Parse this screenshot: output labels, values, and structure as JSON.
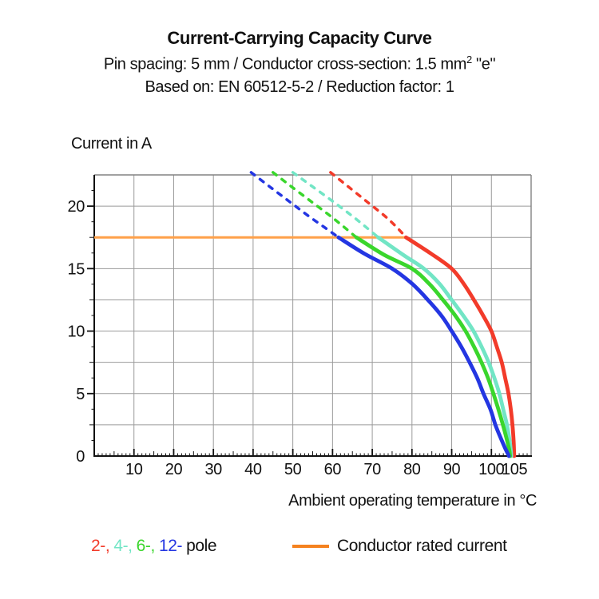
{
  "header": {
    "title": "Current-Carrying Capacity Curve",
    "subtitle1_pre": "Pin spacing: 5 mm / Conductor cross-section: 1.5 mm",
    "subtitle1_sup": "2",
    "subtitle1_post": " \"e\"",
    "subtitle2": "Based on: EN 60512-5-2 / Reduction factor: 1"
  },
  "chart_data": {
    "type": "line",
    "title": "Current-Carrying Capacity Curve",
    "xlabel": "Ambient operating temperature in °C",
    "ylabel": "Current in A",
    "xlim": [
      0,
      110
    ],
    "ylim": [
      0,
      22.5
    ],
    "grid": true,
    "grid_x_step": 10,
    "grid_y_step": 2.5,
    "x_tick_labels": [
      {
        "t": 10,
        "label": "10"
      },
      {
        "t": 20,
        "label": "20"
      },
      {
        "t": 30,
        "label": "30"
      },
      {
        "t": 40,
        "label": "40"
      },
      {
        "t": 50,
        "label": "50"
      },
      {
        "t": 60,
        "label": "60"
      },
      {
        "t": 70,
        "label": "70"
      },
      {
        "t": 80,
        "label": "80"
      },
      {
        "t": 90,
        "label": "90"
      },
      {
        "t": 100,
        "label": "100"
      },
      {
        "t": 105,
        "label": "105",
        "dx": 4
      }
    ],
    "y_tick_labels": [
      {
        "i": 0,
        "label": "0"
      },
      {
        "i": 5,
        "label": "5"
      },
      {
        "i": 10,
        "label": "10"
      },
      {
        "i": 15,
        "label": "15"
      },
      {
        "i": 20,
        "label": "20"
      }
    ],
    "rated_current": {
      "label": "Conductor rated current",
      "value_amps": 17.5,
      "t_start": 0,
      "t_end": 78.5,
      "line_color": "#ffa14a"
    },
    "series": [
      {
        "name": "2-pole",
        "color": "#f23b2a",
        "style_above_rated": "dashed",
        "dashed_points": [
          [
            59.5,
            22.7
          ],
          [
            63.8,
            21.6
          ],
          [
            68.5,
            20.4
          ],
          [
            73.2,
            19.2
          ],
          [
            76.2,
            18.3
          ],
          [
            78.5,
            17.5
          ]
        ],
        "solid_points": [
          [
            78.5,
            17.5
          ],
          [
            84.8,
            16.2
          ],
          [
            90,
            15
          ],
          [
            93,
            13.8
          ],
          [
            95.6,
            12.5
          ],
          [
            98,
            11.2
          ],
          [
            100,
            10
          ],
          [
            101.4,
            8.7
          ],
          [
            102.6,
            7.5
          ],
          [
            103.5,
            6.2
          ],
          [
            104.3,
            5
          ],
          [
            104.9,
            3.7
          ],
          [
            105.3,
            2.5
          ],
          [
            105.6,
            1.2
          ],
          [
            105.7,
            0.4
          ],
          [
            105.75,
            0
          ]
        ]
      },
      {
        "name": "4-pole",
        "color": "#72e5c5",
        "style_above_rated": "dashed",
        "dashed_points": [
          [
            50,
            22.7
          ],
          [
            54.8,
            21.6
          ],
          [
            60,
            20.4
          ],
          [
            65,
            19.2
          ],
          [
            68.5,
            18.3
          ],
          [
            71.5,
            17.5
          ]
        ],
        "solid_points": [
          [
            71.5,
            17.5
          ],
          [
            77.8,
            16.1
          ],
          [
            83,
            15
          ],
          [
            86.9,
            13.8
          ],
          [
            90,
            12.5
          ],
          [
            93,
            11.2
          ],
          [
            95.5,
            10
          ],
          [
            97.6,
            8.7
          ],
          [
            99.3,
            7.5
          ],
          [
            100.8,
            6.2
          ],
          [
            102,
            5
          ],
          [
            103,
            3.7
          ],
          [
            103.9,
            2.5
          ],
          [
            104.6,
            1.2
          ],
          [
            104.9,
            0.4
          ],
          [
            105,
            0
          ]
        ]
      },
      {
        "name": "6-pole",
        "color": "#3ad62c",
        "style_above_rated": "dashed",
        "dashed_points": [
          [
            45,
            22.7
          ],
          [
            49.5,
            21.6
          ],
          [
            54.5,
            20.4
          ],
          [
            59.5,
            19.2
          ],
          [
            63,
            18.3
          ],
          [
            66,
            17.5
          ]
        ],
        "solid_points": [
          [
            66,
            17.5
          ],
          [
            73,
            16.1
          ],
          [
            80,
            15
          ],
          [
            84.3,
            13.8
          ],
          [
            87.8,
            12.5
          ],
          [
            91,
            11.2
          ],
          [
            93.5,
            10
          ],
          [
            95.7,
            8.7
          ],
          [
            97.5,
            7.5
          ],
          [
            99.2,
            6.2
          ],
          [
            100.5,
            5
          ],
          [
            101.8,
            3.7
          ],
          [
            102.9,
            2.5
          ],
          [
            103.9,
            1.3
          ],
          [
            104.5,
            0.5
          ],
          [
            104.7,
            0
          ]
        ]
      },
      {
        "name": "12-pole",
        "color": "#2436e2",
        "style_above_rated": "dashed",
        "dashed_points": [
          [
            39.5,
            22.7
          ],
          [
            44,
            21.6
          ],
          [
            49,
            20.4
          ],
          [
            54,
            19.2
          ],
          [
            58,
            18.3
          ],
          [
            61.5,
            17.5
          ]
        ],
        "solid_points": [
          [
            61.5,
            17.5
          ],
          [
            68,
            16.2
          ],
          [
            75,
            15
          ],
          [
            80,
            13.8
          ],
          [
            84,
            12.5
          ],
          [
            87.5,
            11.2
          ],
          [
            90,
            10
          ],
          [
            92.5,
            8.7
          ],
          [
            94.5,
            7.5
          ],
          [
            96.5,
            6.2
          ],
          [
            98,
            5
          ],
          [
            99.8,
            3.7
          ],
          [
            101,
            2.5
          ],
          [
            102.4,
            1.4
          ],
          [
            103.5,
            0.6
          ],
          [
            104.2,
            0.15
          ],
          [
            104.4,
            0
          ]
        ]
      }
    ]
  },
  "legend": {
    "pole_items": [
      {
        "label": "2-,",
        "color": "#f23b2a"
      },
      {
        "label": "4-,",
        "color": "#72e5c5"
      },
      {
        "label": "6-,",
        "color": "#3ad62c"
      },
      {
        "label": "12-",
        "color": "#2436e2"
      }
    ],
    "pole_suffix": "pole",
    "rated_label": "Conductor rated current",
    "rated_swatch_color": "#f5821f"
  },
  "style": {
    "grid_color": "#9a9a9a",
    "frame_color": "#828282",
    "axis_color": "#111111"
  }
}
